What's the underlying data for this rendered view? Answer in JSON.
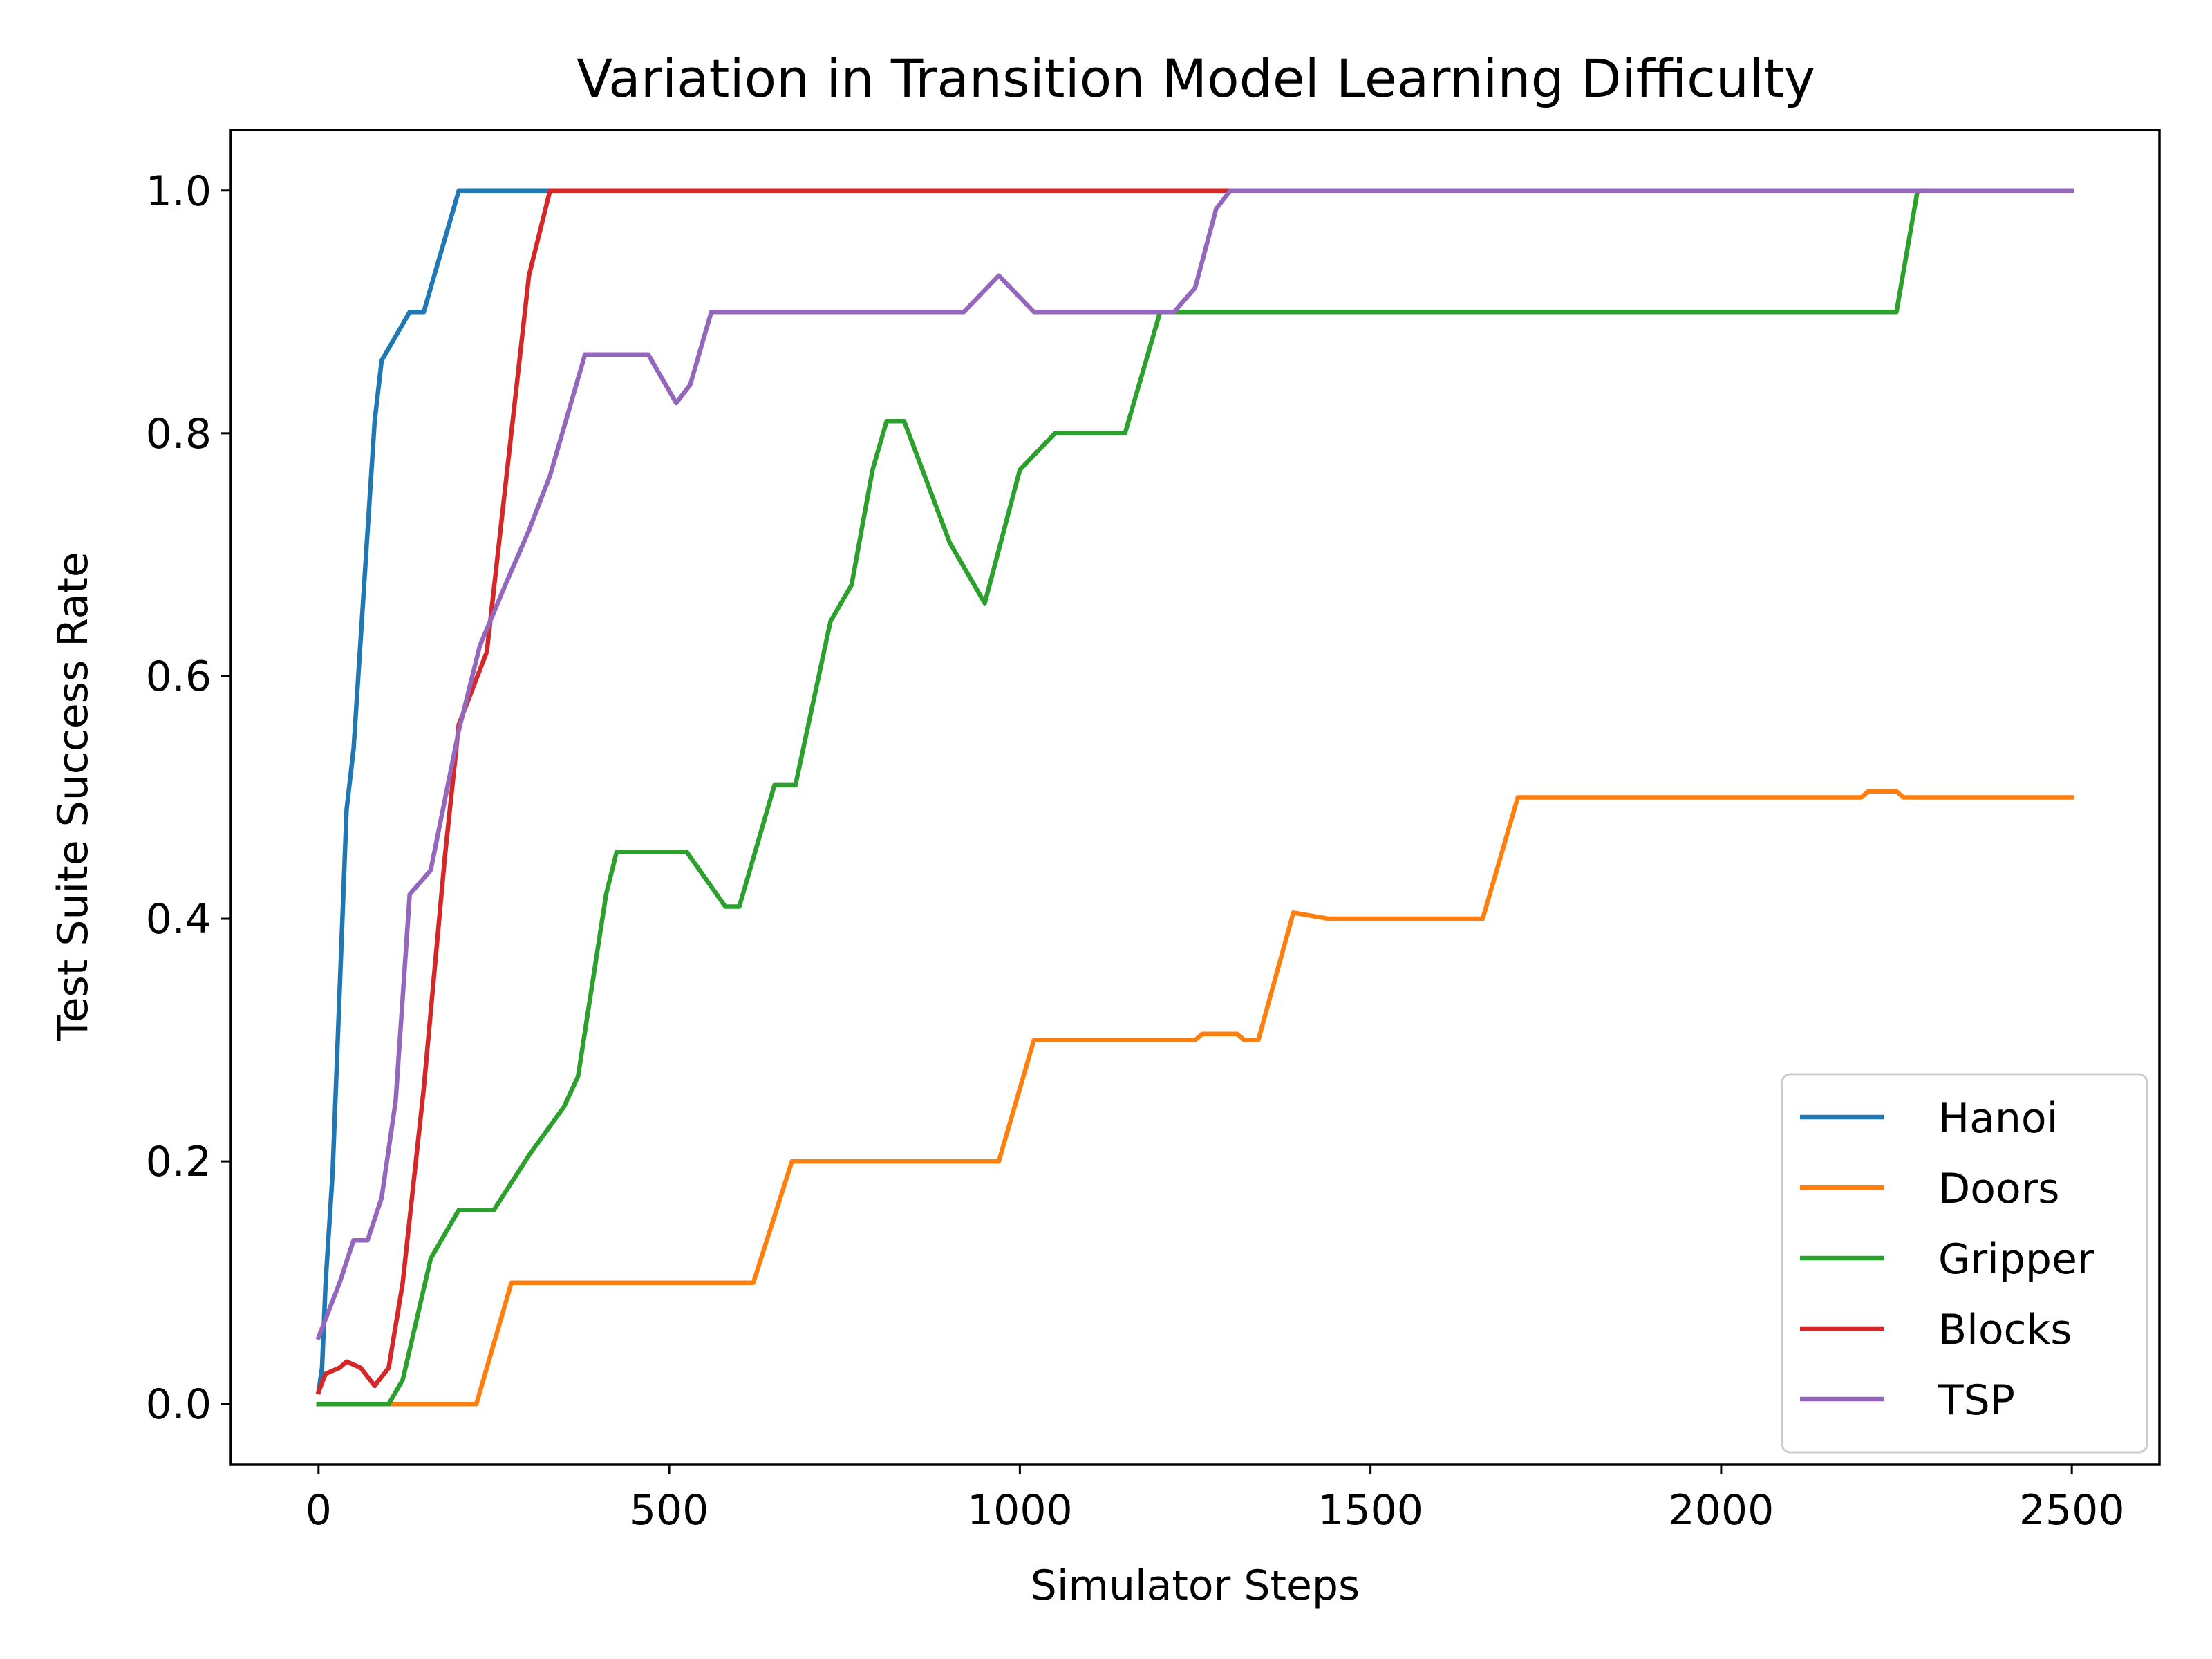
{
  "chart_data": {
    "type": "line",
    "title": "Variation in Transition Model Learning Difficulty",
    "xlabel": "Simulator Steps",
    "ylabel": "Test Suite Success Rate",
    "xlim": [
      -125,
      2625
    ],
    "ylim": [
      -0.05,
      1.05
    ],
    "xticks": [
      0,
      500,
      1000,
      1500,
      2000,
      2500
    ],
    "yticks": [
      0.0,
      0.2,
      0.4,
      0.6,
      0.8,
      1.0
    ],
    "xtick_labels": [
      "0",
      "500",
      "1000",
      "1500",
      "2000",
      "2500"
    ],
    "ytick_labels": [
      "0.0",
      "0.2",
      "0.4",
      "0.6",
      "0.8",
      "1.0"
    ],
    "grid": false,
    "legend_position": "lower-right",
    "series": [
      {
        "name": "Hanoi",
        "color": "#1f77b4",
        "x": [
          0,
          5,
          10,
          20,
          30,
          40,
          50,
          60,
          70,
          80,
          90,
          100,
          130,
          150,
          200,
          330
        ],
        "y": [
          0.01,
          0.03,
          0.1,
          0.19,
          0.34,
          0.49,
          0.54,
          0.63,
          0.72,
          0.81,
          0.86,
          0.87,
          0.9,
          0.9,
          1.0,
          1.0
        ]
      },
      {
        "name": "Doors",
        "color": "#ff7f0e",
        "x": [
          0,
          225,
          275,
          620,
          675,
          970,
          1020,
          1250,
          1260,
          1310,
          1320,
          1340,
          1390,
          1440,
          1660,
          1710,
          2200,
          2210,
          2250,
          2260,
          2500
        ],
        "y": [
          0.0,
          0.0,
          0.1,
          0.1,
          0.2,
          0.2,
          0.3,
          0.3,
          0.305,
          0.305,
          0.3,
          0.3,
          0.405,
          0.4,
          0.4,
          0.5,
          0.5,
          0.505,
          0.505,
          0.5,
          0.5
        ]
      },
      {
        "name": "Gripper",
        "color": "#2ca02c",
        "x": [
          0,
          100,
          120,
          160,
          200,
          250,
          300,
          350,
          370,
          410,
          425,
          525,
          580,
          600,
          650,
          680,
          730,
          760,
          790,
          810,
          835,
          900,
          950,
          1000,
          1050,
          1150,
          1200,
          1230,
          2250,
          2280,
          2500
        ],
        "y": [
          0.0,
          0.0,
          0.02,
          0.12,
          0.16,
          0.16,
          0.205,
          0.245,
          0.27,
          0.42,
          0.455,
          0.455,
          0.41,
          0.41,
          0.51,
          0.51,
          0.645,
          0.675,
          0.77,
          0.81,
          0.81,
          0.71,
          0.66,
          0.77,
          0.8,
          0.8,
          0.9,
          0.9,
          0.9,
          1.0,
          1.0
        ]
      },
      {
        "name": "Blocks",
        "color": "#d62728",
        "x": [
          0,
          10,
          30,
          40,
          60,
          80,
          100,
          120,
          150,
          180,
          200,
          240,
          300,
          330,
          1300
        ],
        "y": [
          0.01,
          0.025,
          0.03,
          0.035,
          0.03,
          0.015,
          0.03,
          0.1,
          0.26,
          0.45,
          0.56,
          0.62,
          0.93,
          1.0,
          1.0
        ]
      },
      {
        "name": "TSP",
        "color": "#9467bd",
        "x": [
          0,
          20,
          30,
          50,
          70,
          90,
          110,
          130,
          160,
          200,
          230,
          270,
          300,
          330,
          380,
          470,
          510,
          530,
          560,
          920,
          970,
          1020,
          1220,
          1250,
          1280,
          1300,
          2500
        ],
        "y": [
          0.055,
          0.085,
          0.1,
          0.135,
          0.135,
          0.17,
          0.25,
          0.42,
          0.44,
          0.555,
          0.625,
          0.68,
          0.72,
          0.765,
          0.865,
          0.865,
          0.825,
          0.84,
          0.9,
          0.9,
          0.93,
          0.9,
          0.9,
          0.92,
          0.985,
          1.0,
          1.0
        ]
      }
    ]
  }
}
